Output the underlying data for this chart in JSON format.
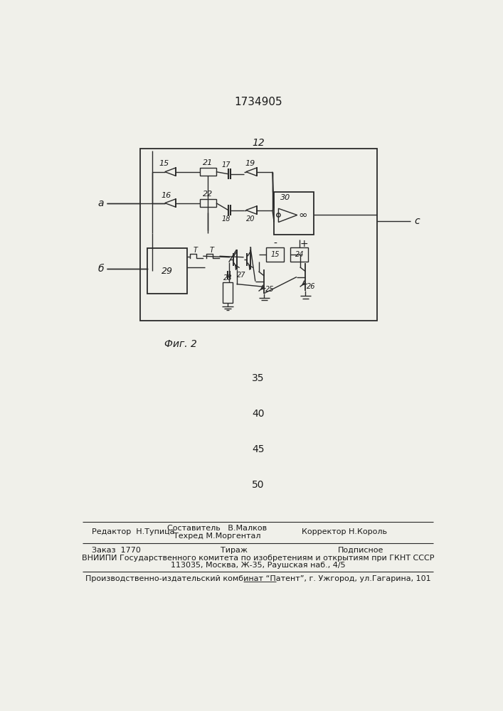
{
  "title_number": "1734905",
  "fig_label": "Фиг. 2",
  "box_label": "12",
  "label_a": "а",
  "label_b": "б",
  "label_c": "с",
  "numbers": {
    "n15": "15",
    "n16": "16",
    "n17": "17",
    "n18": "18",
    "n19": "19",
    "n20": "20",
    "n21": "21",
    "n22": "22",
    "n24": "24",
    "n25": "25",
    "n26": "26",
    "n27": "27",
    "n28": "28",
    "n29": "29",
    "n30": "30",
    "n23b": "15"
  },
  "page_numbers": [
    "35",
    "40",
    "45",
    "50"
  ],
  "footer_line1_left": "Редактор  Н.Тупица",
  "footer_line1_center_top": "Составитель   В.Малков",
  "footer_line1_center_bot": "Техред М.Моргентал",
  "footer_line1_right": "Корректор Н.Король",
  "footer_line2_col1": "Заказ  1770",
  "footer_line2_col2": "Тираж",
  "footer_line2_col3": "Подписное",
  "footer_line3": "ВНИИПИ Государственного комитета по изобретениям и открытиям при ГКНТ СССР",
  "footer_line4": "113035, Москва, Ж-35, Раушская наб., 4/5",
  "footer_line5": "Производственно-издательский комбинат “Патент”, г. Ужгород, ул.Гагарина, 101",
  "bg_color": "#f0f0ea",
  "line_color": "#2a2a2a",
  "text_color": "#1a1a1a"
}
